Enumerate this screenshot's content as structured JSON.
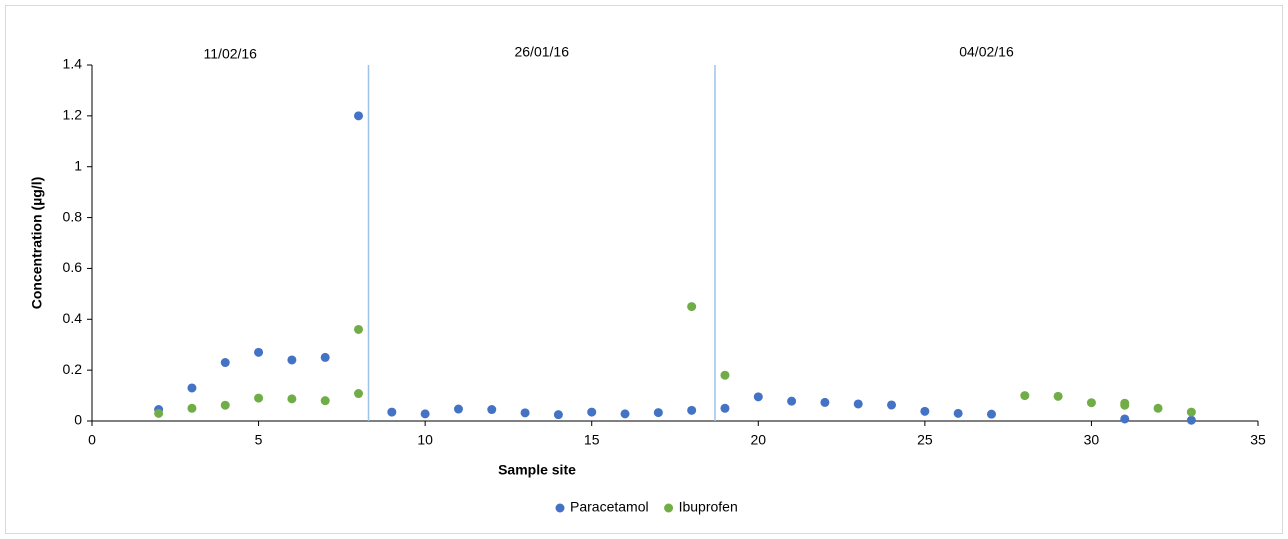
{
  "chart_data": {
    "type": "scatter",
    "x_label": "Sample site",
    "y_label": "Concentration (µg/l)",
    "xlim": [
      0,
      35
    ],
    "ylim": [
      0,
      1.4
    ],
    "xticks": [
      0,
      5,
      10,
      15,
      20,
      25,
      30,
      35
    ],
    "yticks": [
      0,
      0.2,
      0.4,
      0.6,
      0.8,
      1,
      1.2,
      1.4
    ],
    "grid": false,
    "legend": "bottom",
    "separators": [
      8.3,
      18.7
    ],
    "separator_color": "#9dc3e6",
    "annotations": [
      "11/02/16",
      "26/01/16",
      "04/02/16"
    ],
    "series": [
      {
        "name": "Paracetamol",
        "color": "#4472c4",
        "x": [
          2,
          3,
          4,
          5,
          6,
          7,
          8,
          9,
          10,
          11,
          12,
          13,
          14,
          15,
          16,
          17,
          18,
          19,
          20,
          21,
          22,
          23,
          24,
          25,
          26,
          27,
          31,
          33
        ],
        "values": [
          0.045,
          0.13,
          0.23,
          0.27,
          0.24,
          0.25,
          1.2,
          0.035,
          0.028,
          0.047,
          0.045,
          0.032,
          0.025,
          0.035,
          0.028,
          0.033,
          0.042,
          0.05,
          0.095,
          0.078,
          0.073,
          0.067,
          0.063,
          0.038,
          0.03,
          0.027,
          0.008,
          0.003
        ]
      },
      {
        "name": "Ibuprofen",
        "color": "#70ad47",
        "x": [
          2,
          3,
          4,
          5,
          6,
          7,
          8,
          8,
          18,
          19,
          28,
          29,
          30,
          31,
          31,
          32,
          33
        ],
        "values": [
          0.03,
          0.05,
          0.062,
          0.09,
          0.087,
          0.08,
          0.36,
          0.108,
          0.45,
          0.18,
          0.1,
          0.097,
          0.072,
          0.07,
          0.062,
          0.05,
          0.035
        ]
      }
    ]
  }
}
